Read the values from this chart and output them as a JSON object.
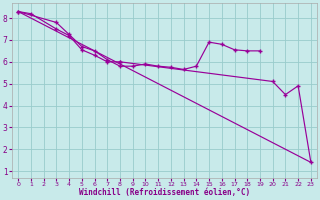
{
  "xlabel": "Windchill (Refroidissement éolien,°C)",
  "line_color": "#990099",
  "bg_color": "#c8eaea",
  "grid_color": "#99cccc",
  "line1_x": [
    0,
    1,
    3,
    4,
    5,
    6,
    7,
    8,
    20,
    21,
    22,
    23
  ],
  "line1_y": [
    8.3,
    8.2,
    7.5,
    7.2,
    6.55,
    6.3,
    6.0,
    6.0,
    5.1,
    4.5,
    4.9,
    1.4
  ],
  "line2_x": [
    0,
    3,
    4,
    5,
    6,
    7,
    8,
    9,
    10,
    11,
    12,
    13,
    14,
    15,
    16,
    17,
    18,
    19
  ],
  "line2_y": [
    8.3,
    7.8,
    7.25,
    6.7,
    6.5,
    6.1,
    5.8,
    5.8,
    5.9,
    5.8,
    5.75,
    5.65,
    5.8,
    6.9,
    6.8,
    6.55,
    6.5,
    6.5
  ],
  "line3_x": [
    0,
    23
  ],
  "line3_y": [
    8.3,
    1.4
  ],
  "xlim": [
    -0.5,
    23.5
  ],
  "ylim": [
    0.7,
    8.7
  ],
  "yticks": [
    1,
    2,
    3,
    4,
    5,
    6,
    7,
    8
  ],
  "xticks": [
    0,
    1,
    2,
    3,
    4,
    5,
    6,
    7,
    8,
    9,
    10,
    11,
    12,
    13,
    14,
    15,
    16,
    17,
    18,
    19,
    20,
    21,
    22,
    23
  ],
  "xlabel_color": "#880088",
  "tick_color": "#880088"
}
